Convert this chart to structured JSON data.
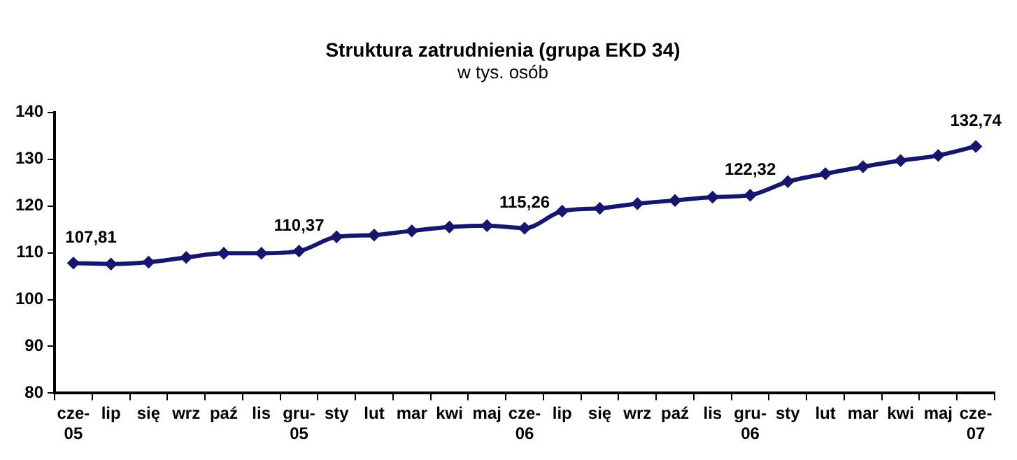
{
  "chart_data": {
    "type": "line",
    "title": "Struktura zatrudnienia (grupa EKD 34)",
    "subtitle": "w tys. osób",
    "categories": [
      "cze-\n05",
      "lip",
      "się",
      "wrz",
      "paź",
      "lis",
      "gru-\n05",
      "sty",
      "lut",
      "mar",
      "kwi",
      "maj",
      "cze-\n06",
      "lip",
      "się",
      "wrz",
      "paź",
      "lis",
      "gru-\n06",
      "sty",
      "lut",
      "mar",
      "kwi",
      "maj",
      "cze-\n07"
    ],
    "series": [
      {
        "color": "#16166e",
        "values": [
          107.81,
          107.6,
          108.0,
          109.0,
          109.9,
          109.9,
          110.37,
          113.4,
          113.8,
          114.7,
          115.5,
          115.8,
          115.26,
          118.9,
          119.5,
          120.5,
          121.2,
          121.9,
          122.32,
          125.2,
          126.9,
          128.4,
          129.7,
          130.8,
          132.74
        ],
        "value_labels": [
          "107,81",
          null,
          null,
          null,
          null,
          null,
          "110,37",
          null,
          null,
          null,
          null,
          null,
          "115,26",
          null,
          null,
          null,
          null,
          null,
          "122,32",
          null,
          null,
          null,
          null,
          null,
          "132,74"
        ]
      }
    ],
    "ylim": [
      80,
      140
    ],
    "yticks": [
      80,
      90,
      100,
      110,
      120,
      130,
      140
    ],
    "grid": false,
    "legend": false,
    "marker": "diamond",
    "line_style": "solid"
  }
}
